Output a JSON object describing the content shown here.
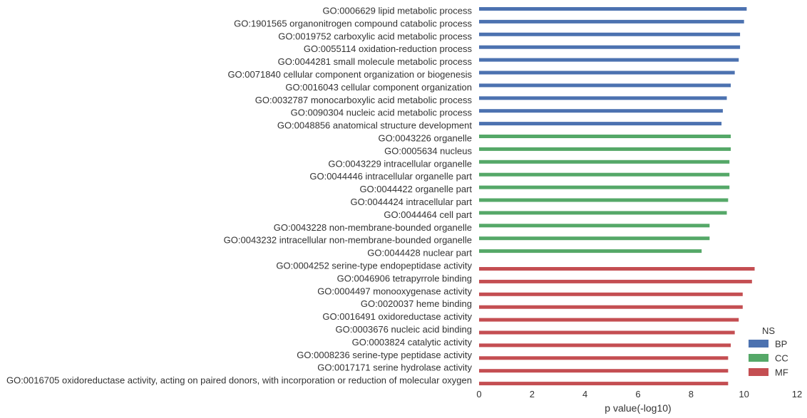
{
  "chart_data": {
    "type": "bar",
    "orientation": "horizontal",
    "xlabel": "p value(-log10)",
    "ylabel": "",
    "xlim": [
      0,
      12
    ],
    "xticks": [
      "0",
      "2",
      "4",
      "6",
      "8",
      "10",
      "12"
    ],
    "grid": false,
    "legend": {
      "title": "NS",
      "placement": "bottom-right",
      "entries": [
        {
          "name": "BP",
          "color": "#4c72b0"
        },
        {
          "name": "CC",
          "color": "#55a868"
        },
        {
          "name": "MF",
          "color": "#c44e52"
        }
      ]
    },
    "categories": [
      {
        "label": "GO:0006629 lipid metabolic process",
        "value": 10.1,
        "ns": "BP"
      },
      {
        "label": "GO:1901565 organonitrogen compound catabolic process",
        "value": 10.0,
        "ns": "BP"
      },
      {
        "label": "GO:0019752 carboxylic acid metabolic process",
        "value": 9.85,
        "ns": "BP"
      },
      {
        "label": "GO:0055114 oxidation-reduction process",
        "value": 9.85,
        "ns": "BP"
      },
      {
        "label": "GO:0044281 small molecule metabolic process",
        "value": 9.8,
        "ns": "BP"
      },
      {
        "label": "GO:0071840 cellular component organization or biogenesis",
        "value": 9.65,
        "ns": "BP"
      },
      {
        "label": "GO:0016043 cellular component organization",
        "value": 9.5,
        "ns": "BP"
      },
      {
        "label": "GO:0032787 monocarboxylic acid metabolic process",
        "value": 9.35,
        "ns": "BP"
      },
      {
        "label": "GO:0090304 nucleic acid metabolic process",
        "value": 9.2,
        "ns": "BP"
      },
      {
        "label": "GO:0048856 anatomical structure development",
        "value": 9.15,
        "ns": "BP"
      },
      {
        "label": "GO:0043226 organelle",
        "value": 9.5,
        "ns": "CC"
      },
      {
        "label": "GO:0005634 nucleus",
        "value": 9.5,
        "ns": "CC"
      },
      {
        "label": "GO:0043229 intracellular organelle",
        "value": 9.45,
        "ns": "CC"
      },
      {
        "label": "GO:0044446 intracellular organelle part",
        "value": 9.45,
        "ns": "CC"
      },
      {
        "label": "GO:0044422 organelle part",
        "value": 9.45,
        "ns": "CC"
      },
      {
        "label": "GO:0044424 intracellular part",
        "value": 9.4,
        "ns": "CC"
      },
      {
        "label": "GO:0044464 cell part",
        "value": 9.35,
        "ns": "CC"
      },
      {
        "label": "GO:0043228 non-membrane-bounded organelle",
        "value": 8.7,
        "ns": "CC"
      },
      {
        "label": "GO:0043232 intracellular non-membrane-bounded organelle",
        "value": 8.7,
        "ns": "CC"
      },
      {
        "label": "GO:0044428 nuclear part",
        "value": 8.4,
        "ns": "CC"
      },
      {
        "label": "GO:0004252 serine-type endopeptidase activity",
        "value": 10.4,
        "ns": "MF"
      },
      {
        "label": "GO:0046906 tetrapyrrole binding",
        "value": 10.3,
        "ns": "MF"
      },
      {
        "label": "GO:0004497 monooxygenase activity",
        "value": 9.95,
        "ns": "MF"
      },
      {
        "label": "GO:0020037 heme binding",
        "value": 9.95,
        "ns": "MF"
      },
      {
        "label": "GO:0016491 oxidoreductase activity",
        "value": 9.8,
        "ns": "MF"
      },
      {
        "label": "GO:0003676 nucleic acid binding",
        "value": 9.65,
        "ns": "MF"
      },
      {
        "label": "GO:0003824 catalytic activity",
        "value": 9.5,
        "ns": "MF"
      },
      {
        "label": "GO:0008236 serine-type peptidase activity",
        "value": 9.4,
        "ns": "MF"
      },
      {
        "label": "GO:0017171 serine hydrolase activity",
        "value": 9.4,
        "ns": "MF"
      },
      {
        "label": "GO:0016705 oxidoreductase activity, acting on paired donors, with incorporation or reduction of molecular oxygen",
        "value": 9.4,
        "ns": "MF"
      }
    ]
  }
}
